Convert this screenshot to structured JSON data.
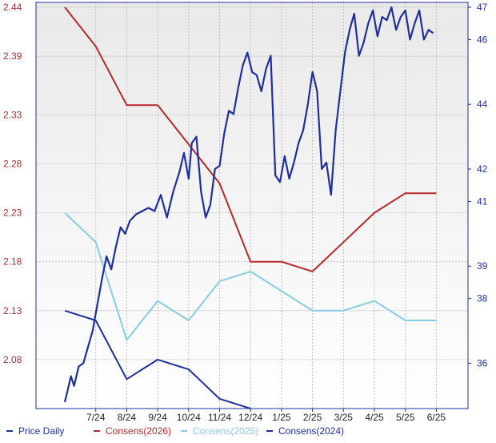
{
  "colors": {
    "price": "#1f2e9e",
    "cons2026": "#b52a2a",
    "cons2025": "#86cde0",
    "cons2024": "#1f2e9e",
    "left_axis_text": "#b52a2a",
    "right_axis_text": "#1f2e9e",
    "grid": "#bfbfbf",
    "plot_bg_top": "#e9e9e9",
    "plot_bg_bottom": "#ffffff"
  },
  "chart_data": {
    "type": "line",
    "title": "",
    "xlabel": "",
    "ylabel": "",
    "x_tick_labels": [
      "7/24",
      "8/24",
      "9/24",
      "10/24",
      "11/24",
      "12/24",
      "1/25",
      "2/25",
      "3/25",
      "4/25",
      "5/25",
      "6/25"
    ],
    "left_axis": {
      "ticks": [
        "2.44",
        "2.39",
        "2.33",
        "2.28",
        "2.23",
        "2.18",
        "2.13",
        "2.08"
      ],
      "ylim": [
        2.03,
        2.44
      ]
    },
    "right_axis": {
      "ticks": [
        "47",
        "46",
        "44",
        "42",
        "41",
        "39",
        "38",
        "36"
      ],
      "ylim": [
        34.6,
        47
      ]
    },
    "grid": true,
    "legend_position": "bottom",
    "legend": [
      "Price Daily",
      "Consens(2026)",
      "Consens(2025)",
      "Consens(2024)"
    ],
    "series": [
      {
        "name": "Consens(2026)",
        "axis": "left",
        "x": [
          0,
          1,
          2,
          3,
          4,
          5,
          6,
          7,
          8,
          9,
          10,
          11,
          12
        ],
        "values": [
          2.44,
          2.4,
          2.34,
          2.34,
          2.3,
          2.26,
          2.18,
          2.18,
          2.17,
          2.2,
          2.23,
          2.25,
          2.25
        ]
      },
      {
        "name": "Consens(2025)",
        "axis": "left",
        "x": [
          0,
          1,
          2,
          3,
          4,
          5,
          6,
          7,
          8,
          9,
          10,
          11,
          12
        ],
        "values": [
          2.23,
          2.2,
          2.1,
          2.14,
          2.12,
          2.16,
          2.17,
          2.15,
          2.13,
          2.13,
          2.14,
          2.12,
          2.12
        ]
      },
      {
        "name": "Consens(2024)",
        "axis": "left",
        "x": [
          0,
          1,
          2,
          3,
          4,
          5,
          6
        ],
        "values": [
          2.13,
          2.12,
          2.06,
          2.08,
          2.07,
          2.04,
          2.03
        ]
      },
      {
        "name": "Price Daily",
        "axis": "right",
        "x": [
          0,
          0.1,
          0.2,
          0.3,
          0.45,
          0.6,
          0.75,
          0.9,
          1.05,
          1.2,
          1.35,
          1.5,
          1.65,
          1.8,
          1.95,
          2.1,
          2.3,
          2.5,
          2.7,
          2.9,
          3.1,
          3.3,
          3.5,
          3.7,
          3.85,
          4.0,
          4.1,
          4.25,
          4.4,
          4.55,
          4.7,
          4.85,
          5.0,
          5.15,
          5.3,
          5.45,
          5.6,
          5.75,
          5.9,
          6.05,
          6.2,
          6.35,
          6.5,
          6.65,
          6.8,
          6.95,
          7.1,
          7.25,
          7.4,
          7.55,
          7.7,
          7.85,
          8.0,
          8.15,
          8.3,
          8.45,
          8.6,
          8.75,
          8.9,
          9.05,
          9.2,
          9.35,
          9.5,
          9.65,
          9.8,
          9.95,
          10.1,
          10.25,
          10.4,
          10.55,
          10.7,
          10.85,
          11.0,
          11.15,
          11.3,
          11.45,
          11.6,
          11.75,
          11.9
        ],
        "values": [
          34.8,
          35.2,
          35.6,
          35.3,
          35.9,
          36.0,
          36.5,
          37.0,
          37.8,
          38.6,
          39.3,
          38.9,
          39.6,
          40.2,
          40.0,
          40.4,
          40.6,
          40.7,
          40.8,
          40.7,
          41.2,
          40.5,
          41.3,
          41.9,
          42.5,
          41.7,
          42.8,
          43.0,
          41.3,
          40.5,
          40.9,
          42.0,
          42.1,
          43.1,
          43.8,
          43.7,
          44.5,
          45.2,
          45.6,
          45.0,
          44.9,
          44.4,
          45.1,
          45.5,
          41.8,
          41.6,
          42.4,
          41.7,
          42.2,
          42.8,
          43.2,
          44.0,
          45.0,
          44.4,
          42.0,
          42.2,
          41.2,
          43.2,
          44.4,
          45.6,
          46.3,
          46.8,
          45.5,
          45.9,
          46.5,
          46.9,
          46.1,
          46.7,
          46.6,
          47.0,
          46.3,
          46.7,
          46.9,
          46.0,
          46.5,
          46.9,
          46.0,
          46.3,
          46.2
        ]
      }
    ]
  }
}
